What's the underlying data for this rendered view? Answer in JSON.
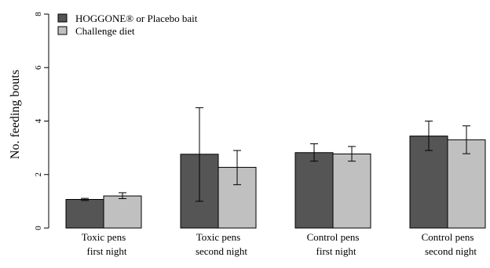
{
  "chart_data": {
    "type": "bar",
    "title": "",
    "xlabel": "",
    "ylabel": "No. feeding bouts",
    "ylim": [
      0,
      8
    ],
    "yticks": [
      0,
      2,
      4,
      6,
      8
    ],
    "grid": false,
    "legend_position": "top-left",
    "categories": [
      [
        "Toxic pens",
        "first night"
      ],
      [
        "Toxic pens",
        "second night"
      ],
      [
        "Control pens",
        "first night"
      ],
      [
        "Control pens",
        "second night"
      ]
    ],
    "series": [
      {
        "name": "HOGGONE® or Placebo bait",
        "color": "#555555",
        "values": [
          1.07,
          2.76,
          2.82,
          3.44
        ],
        "error_low": [
          1.03,
          1.0,
          2.5,
          2.9
        ],
        "error_high": [
          1.11,
          4.5,
          3.15,
          4.0
        ]
      },
      {
        "name": "Challenge diet",
        "color": "#c0c0c0",
        "values": [
          1.2,
          2.27,
          2.77,
          3.3
        ],
        "error_low": [
          1.1,
          1.62,
          2.5,
          2.78
        ],
        "error_high": [
          1.32,
          2.9,
          3.05,
          3.82
        ]
      }
    ]
  }
}
